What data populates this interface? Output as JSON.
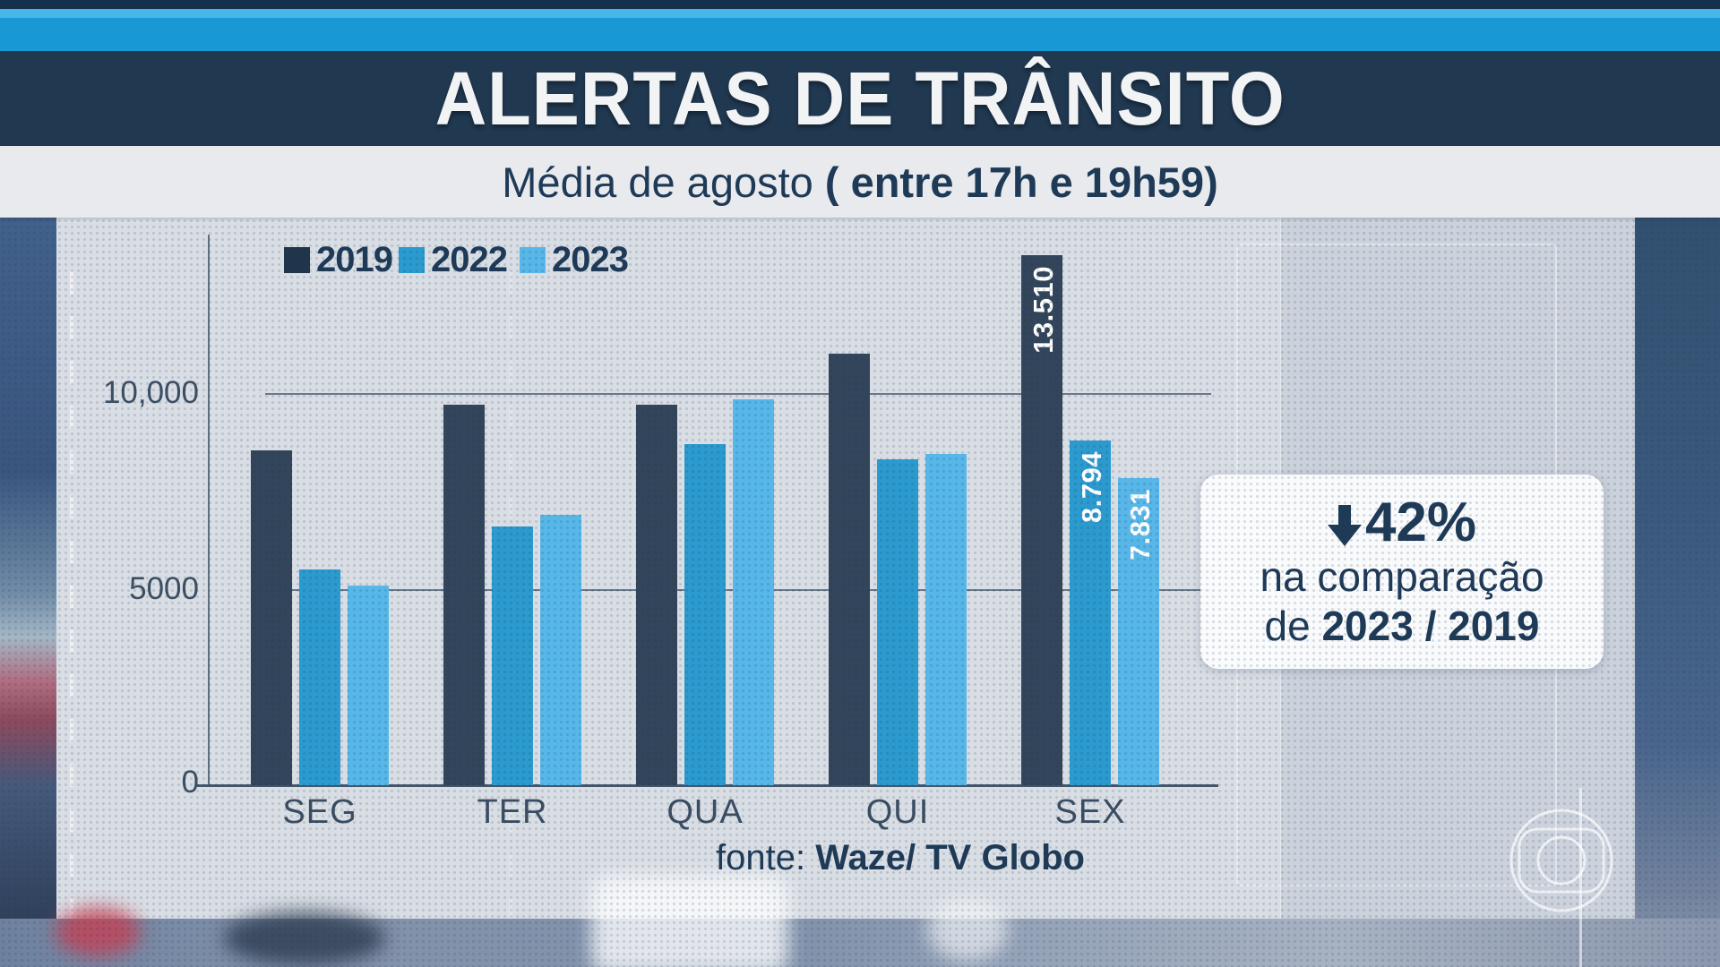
{
  "header": {
    "title": "ALERTAS DE TRÂNSITO",
    "subtitle_regular": "Média de agosto ",
    "subtitle_bold": "( entre 17h e 19h59)"
  },
  "legend": [
    {
      "label": "2019",
      "color": "#20344a"
    },
    {
      "label": "2022",
      "color": "#2b9ace"
    },
    {
      "label": "2023",
      "color": "#57b7e8"
    }
  ],
  "callout": {
    "arrow_icon": "down-arrow",
    "percent": "42%",
    "line2": "na comparação",
    "line3_prefix": "de ",
    "line3_bold": "2023 / 2019"
  },
  "footer": {
    "source_prefix": "fonte: ",
    "source_bold": "Waze/ TV Globo"
  },
  "chart_data": {
    "type": "bar",
    "title": "ALERTAS DE TRÂNSITO",
    "subtitle": "Média de agosto ( entre 17h e 19h59)",
    "categories": [
      "SEG",
      "TER",
      "QUA",
      "QUI",
      "SEX"
    ],
    "series": [
      {
        "name": "2019",
        "color": "#33455a",
        "values": [
          8550,
          9700,
          9700,
          11000,
          13510
        ],
        "value_labels": [
          "",
          "",
          "",
          "",
          "13.510"
        ]
      },
      {
        "name": "2022",
        "color": "#2b9ace",
        "values": [
          5500,
          6600,
          8700,
          8300,
          8794
        ],
        "value_labels": [
          "",
          "",
          "",
          "",
          "8.794"
        ]
      },
      {
        "name": "2023",
        "color": "#57b7e8",
        "values": [
          5100,
          6900,
          9850,
          8450,
          7831
        ],
        "value_labels": [
          "",
          "",
          "",
          "",
          "7.831"
        ]
      }
    ],
    "yticks": [
      {
        "value": 0,
        "label": "0"
      },
      {
        "value": 5000,
        "label": "5000"
      },
      {
        "value": 10000,
        "label": "10,000"
      }
    ],
    "ylim": [
      0,
      13700
    ],
    "gridlines": [
      10000,
      5000
    ],
    "grid": true,
    "legend_position": "top-left",
    "annotation": "↓42% na comparação de 2023 / 2019",
    "source": "fonte: Waze/ TV Globo"
  }
}
